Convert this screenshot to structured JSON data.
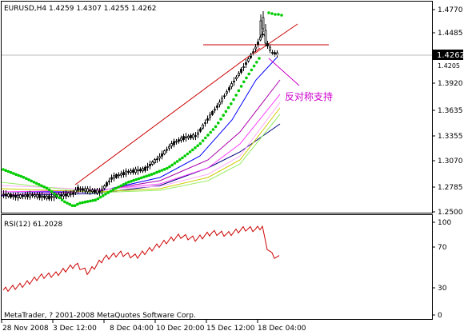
{
  "main_panel": {
    "header": "EURUSD,H4  1.4259 1.4307 1.4255 1.4262",
    "annotation": "反对称支持",
    "current_price_label": "1.4262",
    "price_ticks": [
      "1.4770",
      "1.4485",
      "1.4205",
      "1.3920",
      "1.3635",
      "1.3355",
      "1.3070",
      "1.2785",
      "1.2500"
    ]
  },
  "rsi_panel": {
    "header": "RSI(12) 61.2028",
    "level_ticks": [
      "100",
      "70",
      "30",
      "0"
    ],
    "copyright": "MetaTrader, ? 2001-2008 MetaQuotes Software Corp."
  },
  "time_axis": {
    "labels": [
      "28 Nov 2008",
      "3 Dec 12:00",
      "8 Dec 04:00",
      "10 Dec 20:00",
      "15 Dec 12:00",
      "18 Dec 04:00"
    ]
  },
  "colors": {
    "background": "#ffffff",
    "candles": "#000000",
    "sar_dots": "#00cc00",
    "trend_line": "#cc0000",
    "annotation": "#cc00cc",
    "rsi_line": "#cc0000",
    "ma_navy": "#000080",
    "ma_blue": "#0000ff",
    "ma_purple": "#aa00aa",
    "ma_magenta": "#ff44ff",
    "ma_pink": "#ffaaff",
    "ma_yellow": "#cccc00",
    "ma_lightgreen": "#99ee66"
  }
}
